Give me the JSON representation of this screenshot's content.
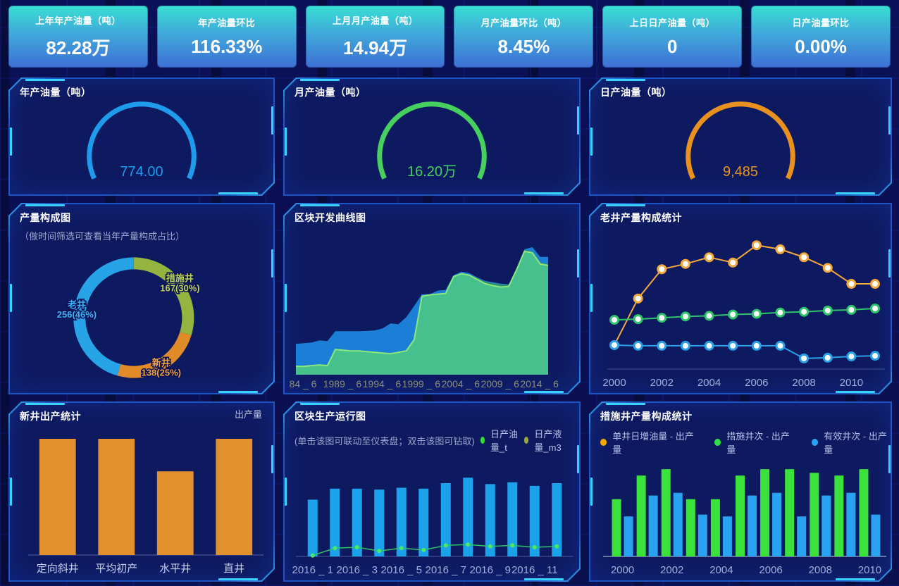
{
  "kpi_cards": [
    {
      "label": "上年年产油量（吨）",
      "value": "82.28万"
    },
    {
      "label": "年产油量环比",
      "value": "116.33%"
    },
    {
      "label": "上月月产油量（吨）",
      "value": "14.94万"
    },
    {
      "label": "月产油量环比（吨）",
      "value": "8.45%"
    },
    {
      "label": "上日日产油量（吨）",
      "value": "0"
    },
    {
      "label": "日产油量环比",
      "value": "0.00%"
    }
  ],
  "colors": {
    "panel_border": "#1d55c5",
    "panel_accent": "#3ad1fa",
    "axis_label": "#9fb0dc",
    "area_axis_label": "#8b8e78",
    "legend_text": "#b4c0e8"
  },
  "chart_data": [
    {
      "name": "gauge-year",
      "type": "gauge",
      "title": "年产油量（吨）",
      "value_label": "774.00",
      "color": "#1e9bea"
    },
    {
      "name": "gauge-month",
      "type": "gauge",
      "title": "月产油量（吨）",
      "value_label": "16.20万",
      "color": "#46d05e"
    },
    {
      "name": "gauge-day",
      "type": "gauge",
      "title": "日产油量（吨）",
      "value_label": "9,485",
      "color": "#e8911f"
    },
    {
      "name": "production-mix-donut",
      "type": "pie",
      "title": "产量构成图",
      "subtitle": "（做时间筛选可查看当年产量构成占比）",
      "slices": [
        {
          "name": "措施井",
          "value": 167,
          "pct": "30%",
          "color": "#95b43f",
          "label_color": "#bdd45a"
        },
        {
          "name": "新井",
          "value": 138,
          "pct": "25%",
          "color": "#e08b28",
          "label_color": "#f2a23c"
        },
        {
          "name": "老井",
          "value": 256,
          "pct": "46%",
          "color": "#27a3e8",
          "label_color": "#3ab4f4"
        }
      ]
    },
    {
      "name": "block-development-curve",
      "type": "area",
      "title": "区块开发曲线图",
      "x_labels": [
        "84 _ 6",
        "1989 _ 6",
        "1994 _ 6",
        "1999 _ 6",
        "2004 _ 6",
        "2009 _ 6",
        "2014 _ 6"
      ],
      "label_indices": [
        0,
        5,
        10,
        15,
        20,
        25,
        30
      ],
      "ylim": [
        0,
        100
      ],
      "series": [
        {
          "name": "blue-area",
          "color": "#1b7fd8",
          "values": [
            22,
            22.5,
            23,
            24.5,
            24,
            31,
            31,
            31,
            31,
            31.2,
            31.6,
            33,
            36.6,
            36,
            41,
            49,
            57.5,
            57.5,
            60,
            60.5,
            71,
            73.5,
            72.5,
            69.5,
            67,
            66,
            65,
            64.5,
            76,
            89.5,
            91,
            84,
            84
          ]
        },
        {
          "name": "teal-area",
          "color": "#2f9077",
          "values": [
            6,
            6,
            6.5,
            7,
            6.5,
            18,
            17.5,
            17,
            17,
            16.5,
            16,
            15.5,
            15,
            16,
            17,
            25,
            56,
            57,
            57.5,
            58,
            70,
            72,
            71,
            69,
            66.5,
            65.5,
            64.5,
            64,
            75.5,
            89,
            88,
            80,
            79
          ]
        },
        {
          "name": "green-area",
          "color": "#46c08d",
          "stroke": "#8ce87a",
          "values": [
            6,
            6,
            6.5,
            7,
            6.5,
            18,
            17.5,
            17,
            17,
            16.5,
            16,
            15.5,
            15,
            16,
            17,
            25,
            56,
            57,
            57.5,
            58,
            70,
            72,
            71,
            68,
            65,
            63.5,
            62.5,
            63,
            75,
            88,
            87,
            79,
            78
          ]
        }
      ]
    },
    {
      "name": "old-well-composition",
      "type": "line",
      "title": "老井产量构成统计",
      "x_count": 12,
      "x_labels": [
        "2000",
        "2002",
        "2004",
        "2006",
        "2008",
        "2010"
      ],
      "label_step": 2,
      "ylim": [
        0,
        100
      ],
      "series": [
        {
          "name": "yellow-line",
          "color": "#f2a83c",
          "values": [
            18,
            53,
            75,
            79,
            84,
            80,
            93,
            90,
            84,
            76,
            64,
            64
          ]
        },
        {
          "name": "green-line",
          "color": "#2ec46a",
          "values": [
            37,
            37.5,
            38.5,
            39.5,
            40,
            41,
            41.5,
            42.5,
            43,
            44,
            44.5,
            45.5
          ]
        },
        {
          "name": "blue-line",
          "color": "#2aa0e8",
          "values": [
            18,
            17.5,
            17.5,
            17.5,
            17.5,
            17.5,
            17.5,
            17.5,
            8,
            8.5,
            9.5,
            10
          ]
        }
      ]
    },
    {
      "name": "new-well-output",
      "type": "bar",
      "title": "新井出产统计",
      "legend": [
        "出产量"
      ],
      "categories": [
        "定向斜井",
        "平均初产",
        "水平井",
        "直井"
      ],
      "values": [
        100,
        100,
        72,
        100
      ],
      "ylim": [
        0,
        100
      ],
      "color": "#e0912d"
    },
    {
      "name": "block-production-run",
      "type": "bar-line",
      "title": "区块生产运行图",
      "subtitle": "(单击该图可联动至仪表盘；双击该图可钻取)",
      "legend": [
        {
          "label": "日产油量_t",
          "color": "#2ee02e"
        },
        {
          "label": "日产液量_m3",
          "color": "#9aa83a"
        }
      ],
      "x_labels": [
        "2016 _ 1",
        "2016 _ 3",
        "2016 _ 5",
        "2016 _ 7",
        "2016 _ 9",
        "2016 _ 11"
      ],
      "label_step": 2,
      "ylim": [
        0,
        100
      ],
      "bars": [
        62,
        74,
        74,
        73,
        75,
        74,
        80,
        86,
        79,
        81,
        77,
        80
      ],
      "bar_color": "#1ca2ea",
      "line": [
        1,
        9,
        10,
        6,
        9,
        7,
        12,
        13,
        11,
        12,
        10,
        11
      ],
      "line_color": "#2ec46a"
    },
    {
      "name": "treatment-well-composition",
      "type": "grouped-bar",
      "title": "措施井产量构成统计",
      "legend": [
        {
          "label": "单井日增油量 - 出产量",
          "color": "#f5a800"
        },
        {
          "label": "措施井次 - 出产量",
          "color": "#2ee042"
        },
        {
          "label": "有效井次 - 出产量",
          "color": "#29a3ef"
        }
      ],
      "categories": [
        "2000",
        "2001",
        "2002",
        "2003",
        "2004",
        "2005",
        "2006",
        "2007",
        "2008",
        "2009",
        "2010"
      ],
      "x_labels": [
        "2000",
        "2002",
        "2004",
        "2006",
        "2008",
        "2010"
      ],
      "label_step": 2,
      "ylim": [
        0,
        100
      ],
      "series": [
        {
          "name": "green-bars",
          "color": "#3ce23c",
          "values": [
            63,
            89,
            96,
            63,
            63,
            89,
            96,
            96,
            92,
            89,
            96
          ]
        },
        {
          "name": "blue-bars",
          "color": "#29a3ef",
          "values": [
            44,
            67,
            70,
            46,
            44,
            67,
            70,
            44,
            67,
            70,
            46
          ]
        }
      ]
    }
  ]
}
